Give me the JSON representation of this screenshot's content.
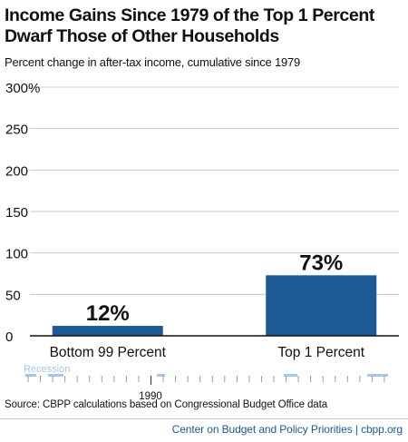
{
  "title_lines": [
    "Income Gains Since 1979 of the Top 1 Percent",
    "Dwarf Those of Other Households"
  ],
  "subtitle": "Percent change in after-tax income, cumulative since 1979",
  "chart_data": {
    "type": "bar",
    "categories": [
      "Bottom 99 Percent",
      "Top 1 Percent"
    ],
    "values": [
      12,
      73
    ],
    "data_labels": [
      "12%",
      "73%"
    ],
    "ylim": [
      0,
      300
    ],
    "yticks": [
      0,
      50,
      100,
      150,
      200,
      250,
      300
    ],
    "ytick_labels": [
      "0",
      "50",
      "100",
      "150",
      "200",
      "250",
      "300%"
    ],
    "grid": true,
    "bar_color": "#1c5a96",
    "grid_color": "#c9c9c9"
  },
  "timeline": {
    "recession_label": "Recession",
    "year_label": "1990",
    "recession_color": "#a9c7e3"
  },
  "source": "Source: CBPP calculations based on Congressional Budget Office data",
  "credit": "Center on Budget and Policy Priorities | cbpp.org"
}
